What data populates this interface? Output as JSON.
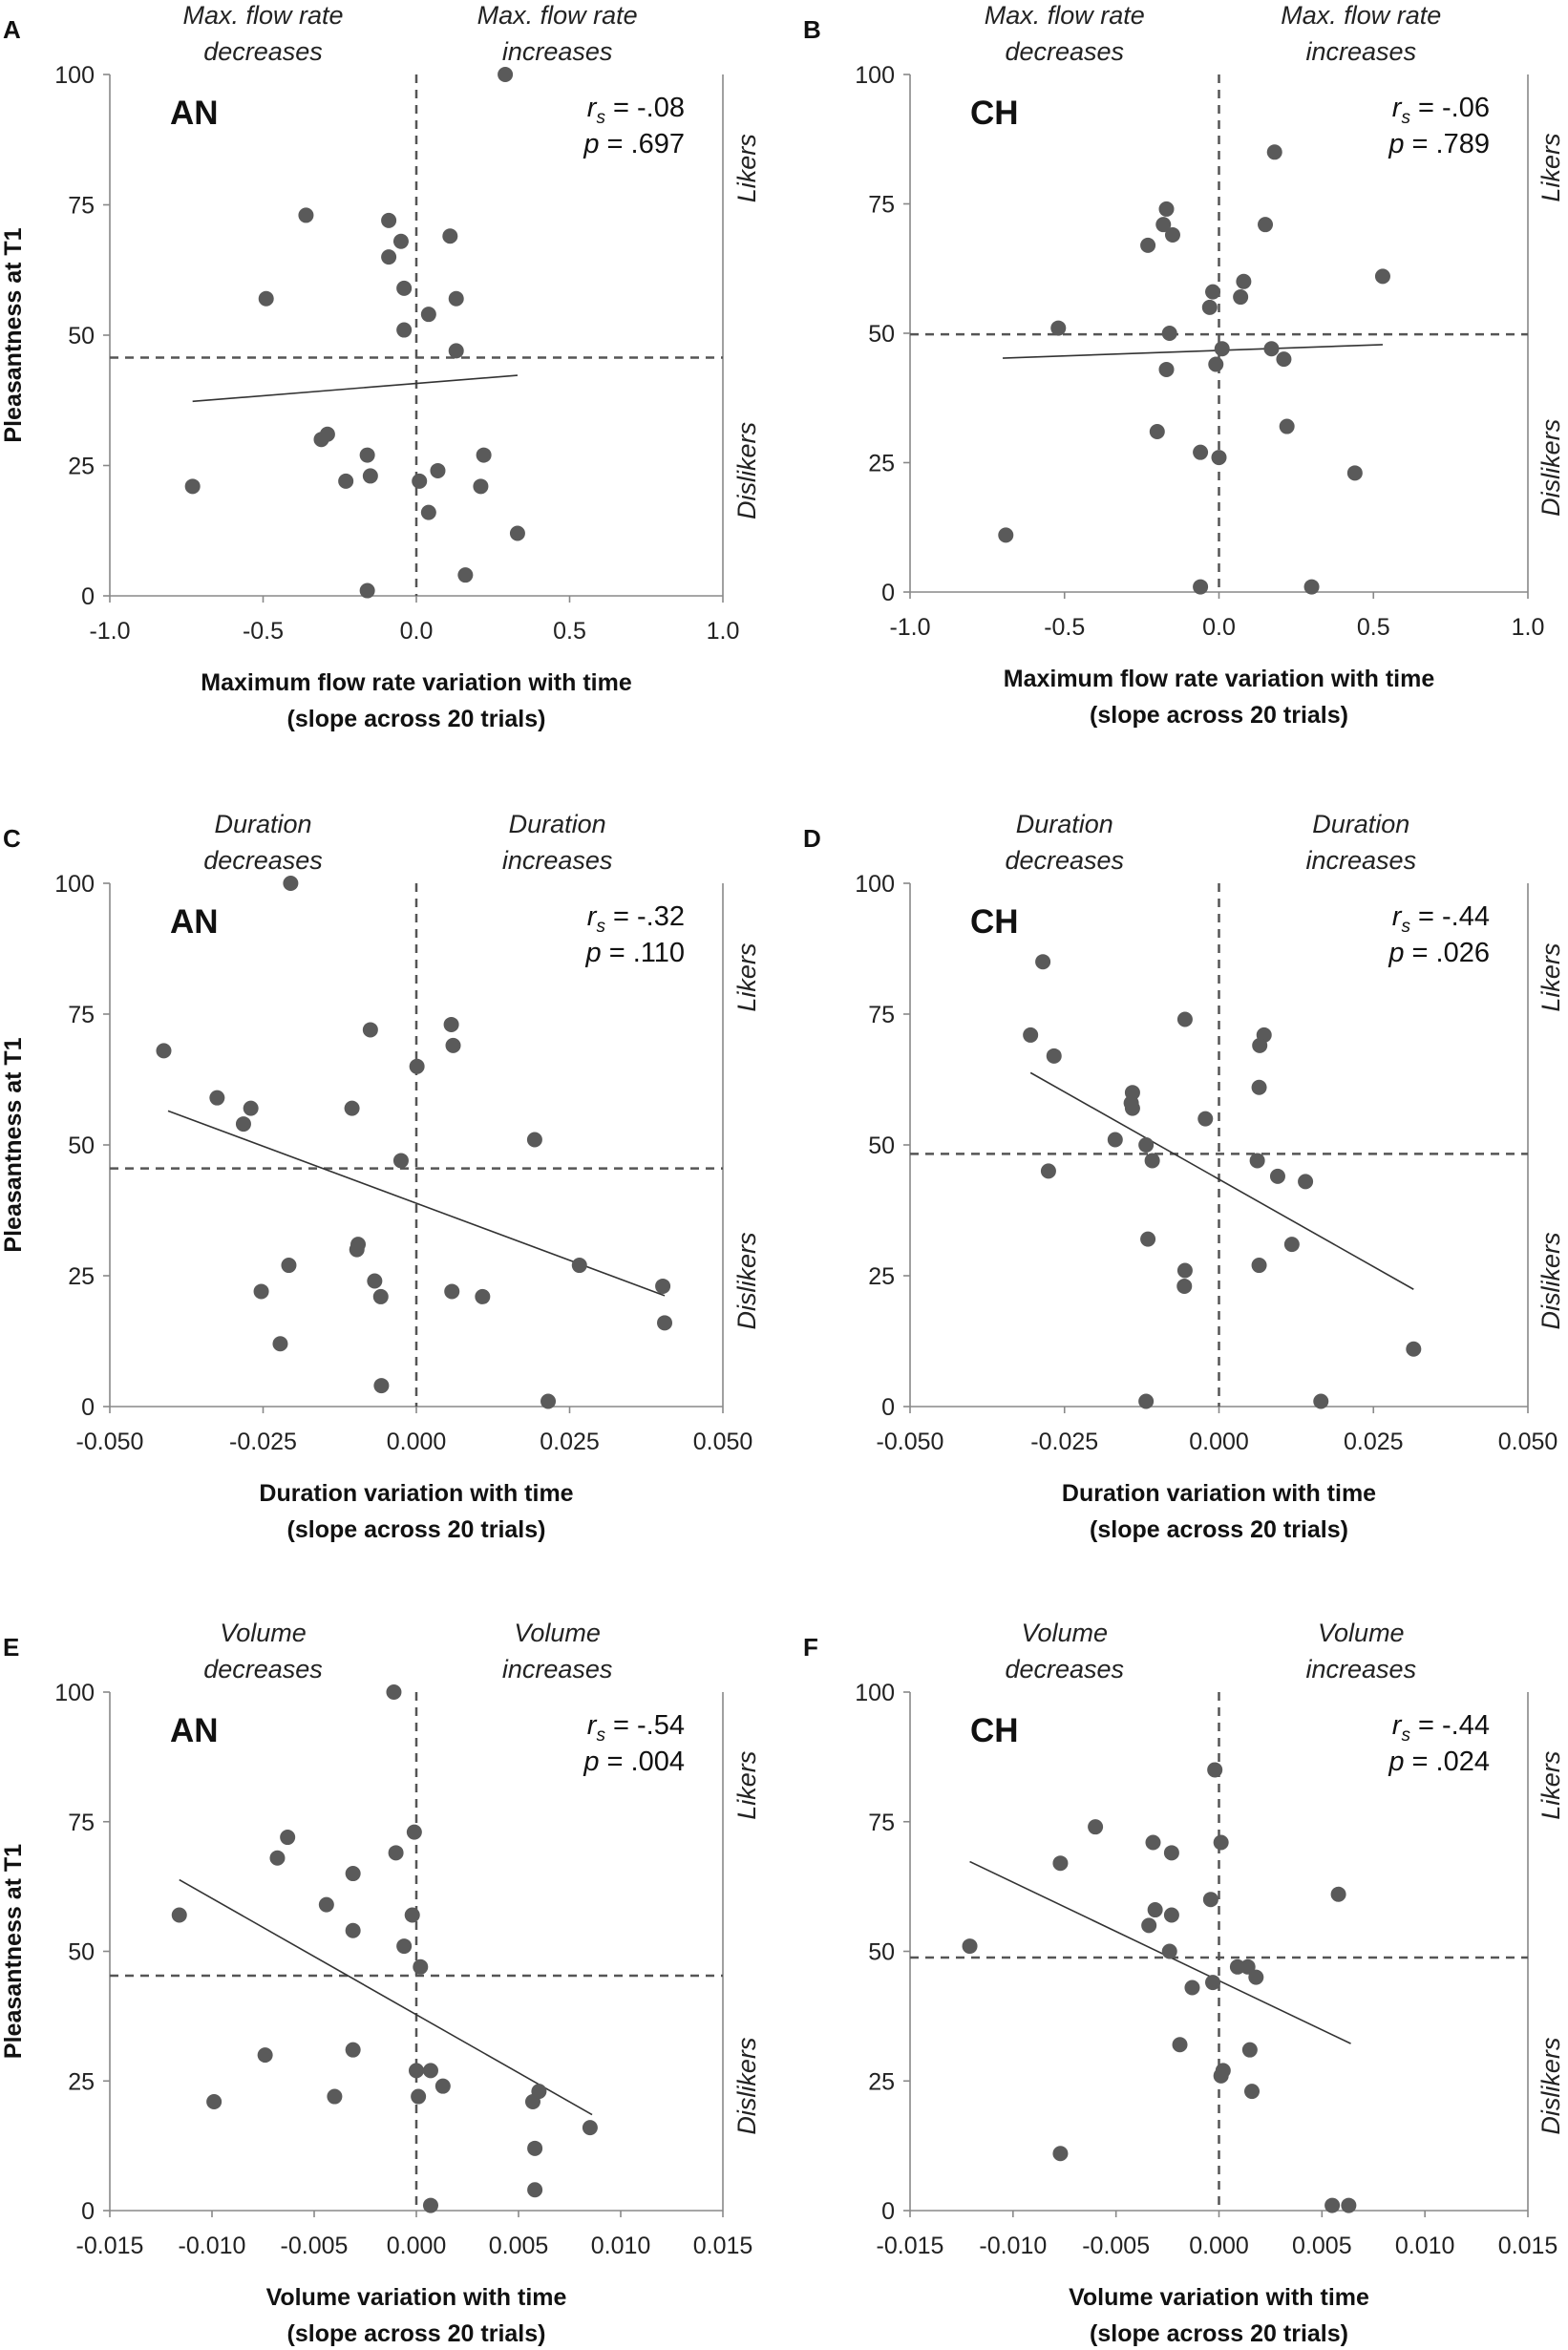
{
  "figure": {
    "shared_y_label": "Pleasantness at T1",
    "side_label_likers": "Likers",
    "side_label_dislikers": "Dislikers"
  },
  "chart_data": [
    {
      "id": "A",
      "panel_letter": "A",
      "group": "AN",
      "type": "scatter",
      "stats": {
        "rs": "-.08",
        "p": ".697"
      },
      "annotation_left": [
        "Max. flow rate",
        "decreases"
      ],
      "annotation_right": [
        "Max. flow rate",
        "increases"
      ],
      "xlabel": [
        "Maximum flow rate variation with time",
        "(slope across 20 trials)"
      ],
      "ylabel": "Pleasantness at T1",
      "xlim": [
        -1.0,
        1.0
      ],
      "ylim": [
        0,
        100
      ],
      "xticks": [
        "-1.0",
        "-0.5",
        "0.0",
        "0.5",
        "1.0"
      ],
      "yticks": [
        "0",
        "25",
        "50",
        "75",
        "100"
      ],
      "hline": 45.7,
      "fit_line": [
        [
          -0.73,
          37.3
        ],
        [
          0.33,
          42.3
        ]
      ],
      "points": [
        [
          0.29,
          100
        ],
        [
          -0.36,
          73
        ],
        [
          -0.09,
          72
        ],
        [
          -0.05,
          68
        ],
        [
          -0.09,
          65
        ],
        [
          0.11,
          69
        ],
        [
          -0.04,
          59
        ],
        [
          -0.49,
          57
        ],
        [
          0.13,
          57
        ],
        [
          0.04,
          54
        ],
        [
          -0.04,
          51
        ],
        [
          0.13,
          47
        ],
        [
          -0.29,
          31
        ],
        [
          -0.31,
          30
        ],
        [
          -0.16,
          27
        ],
        [
          0.22,
          27
        ],
        [
          -0.15,
          23
        ],
        [
          -0.23,
          22
        ],
        [
          0.07,
          24
        ],
        [
          0.01,
          22
        ],
        [
          -0.73,
          21
        ],
        [
          0.21,
          21
        ],
        [
          0.04,
          16
        ],
        [
          0.33,
          12
        ],
        [
          0.16,
          4
        ],
        [
          -0.16,
          1
        ]
      ]
    },
    {
      "id": "B",
      "panel_letter": "B",
      "group": "CH",
      "type": "scatter",
      "stats": {
        "rs": "-.06",
        "p": ".789"
      },
      "annotation_left": [
        "Max. flow rate",
        "decreases"
      ],
      "annotation_right": [
        "Max. flow rate",
        "increases"
      ],
      "xlabel": [
        "Maximum flow rate variation with time",
        "(slope across 20 trials)"
      ],
      "ylabel": "",
      "xlim": [
        -1.0,
        1.0
      ],
      "ylim": [
        0,
        100
      ],
      "xticks": [
        "-1.0",
        "-0.5",
        "0.0",
        "0.5",
        "1.0"
      ],
      "yticks": [
        "0",
        "25",
        "50",
        "75",
        "100"
      ],
      "hline": 49.8,
      "fit_line": [
        [
          -0.7,
          45.2
        ],
        [
          0.53,
          47.8
        ]
      ],
      "points": [
        [
          0.18,
          85
        ],
        [
          -0.17,
          74
        ],
        [
          -0.18,
          71
        ],
        [
          0.15,
          71
        ],
        [
          -0.15,
          69
        ],
        [
          -0.23,
          67
        ],
        [
          0.08,
          60
        ],
        [
          0.53,
          61
        ],
        [
          -0.02,
          58
        ],
        [
          0.07,
          57
        ],
        [
          -0.03,
          55
        ],
        [
          -0.52,
          51
        ],
        [
          -0.16,
          50
        ],
        [
          0.17,
          47
        ],
        [
          0.01,
          47
        ],
        [
          0.21,
          45
        ],
        [
          -0.01,
          44
        ],
        [
          -0.17,
          43
        ],
        [
          0.22,
          32
        ],
        [
          -0.2,
          31
        ],
        [
          -0.06,
          27
        ],
        [
          0.0,
          26
        ],
        [
          0.44,
          23
        ],
        [
          -0.69,
          11
        ],
        [
          -0.06,
          1
        ],
        [
          0.3,
          1
        ]
      ]
    },
    {
      "id": "C",
      "panel_letter": "C",
      "group": "AN",
      "type": "scatter",
      "stats": {
        "rs": "-.32",
        "p": ".110"
      },
      "annotation_left": [
        "Duration",
        "decreases"
      ],
      "annotation_right": [
        "Duration",
        "increases"
      ],
      "xlabel": [
        "Duration variation with time",
        "(slope across 20 trials)"
      ],
      "ylabel": "Pleasantness at T1",
      "xlim": [
        -0.05,
        0.05
      ],
      "ylim": [
        0,
        100
      ],
      "xticks": [
        "-0.050",
        "-0.025",
        "0.000",
        "0.025",
        "0.050"
      ],
      "yticks": [
        "0",
        "25",
        "50",
        "75",
        "100"
      ],
      "hline": 45.5,
      "fit_line": [
        [
          -0.0405,
          56.5
        ],
        [
          0.0405,
          21.2
        ]
      ],
      "points": [
        [
          -0.0205,
          100
        ],
        [
          0.0057,
          73
        ],
        [
          -0.0075,
          72
        ],
        [
          0.006,
          69
        ],
        [
          -0.0412,
          68
        ],
        [
          0.0001,
          65
        ],
        [
          -0.0325,
          59
        ],
        [
          -0.0105,
          57
        ],
        [
          -0.027,
          57
        ],
        [
          -0.0282,
          54
        ],
        [
          0.0193,
          51
        ],
        [
          -0.0025,
          47
        ],
        [
          -0.0095,
          31
        ],
        [
          -0.0097,
          30
        ],
        [
          -0.0208,
          27
        ],
        [
          0.0266,
          27
        ],
        [
          -0.0068,
          24
        ],
        [
          -0.0253,
          22
        ],
        [
          0.0058,
          22
        ],
        [
          -0.0058,
          21
        ],
        [
          0.0108,
          21
        ],
        [
          0.0402,
          23
        ],
        [
          0.0405,
          16
        ],
        [
          -0.0222,
          12
        ],
        [
          -0.0057,
          4
        ],
        [
          0.0215,
          1
        ]
      ]
    },
    {
      "id": "D",
      "panel_letter": "D",
      "group": "CH",
      "type": "scatter",
      "stats": {
        "rs": "-.44",
        "p": ".026"
      },
      "annotation_left": [
        "Duration",
        "decreases"
      ],
      "annotation_right": [
        "Duration",
        "increases"
      ],
      "xlabel": [
        "Duration variation with time",
        "(slope across 20 trials)"
      ],
      "ylabel": "",
      "xlim": [
        -0.05,
        0.05
      ],
      "ylim": [
        0,
        100
      ],
      "xticks": [
        "-0.050",
        "-0.025",
        "0.000",
        "0.025",
        "0.050"
      ],
      "yticks": [
        "0",
        "25",
        "50",
        "75",
        "100"
      ],
      "hline": 48.3,
      "fit_line": [
        [
          -0.0305,
          63.8
        ],
        [
          0.0315,
          22.4
        ]
      ],
      "points": [
        [
          -0.0285,
          85
        ],
        [
          -0.0055,
          74
        ],
        [
          -0.0305,
          71
        ],
        [
          0.0073,
          71
        ],
        [
          0.0066,
          69
        ],
        [
          -0.0267,
          67
        ],
        [
          0.0065,
          61
        ],
        [
          -0.014,
          60
        ],
        [
          -0.014,
          57
        ],
        [
          -0.0142,
          58
        ],
        [
          -0.0022,
          55
        ],
        [
          -0.0168,
          51
        ],
        [
          -0.0118,
          50
        ],
        [
          -0.0108,
          47
        ],
        [
          0.0062,
          47
        ],
        [
          0.0095,
          44
        ],
        [
          0.014,
          43
        ],
        [
          -0.0276,
          45
        ],
        [
          -0.0115,
          32
        ],
        [
          0.0118,
          31
        ],
        [
          -0.0055,
          26
        ],
        [
          0.0065,
          27
        ],
        [
          -0.0056,
          23
        ],
        [
          0.0315,
          11
        ],
        [
          -0.0118,
          1
        ],
        [
          0.0165,
          1
        ]
      ]
    },
    {
      "id": "E",
      "panel_letter": "E",
      "group": "AN",
      "type": "scatter",
      "stats": {
        "rs": "-.54",
        "p": ".004"
      },
      "annotation_left": [
        "Volume",
        "decreases"
      ],
      "annotation_right": [
        "Volume",
        "increases"
      ],
      "xlabel": [
        "Volume variation with time",
        "(slope across 20 trials)"
      ],
      "ylabel": "Pleasantness at T1",
      "xlim": [
        -0.015,
        0.015
      ],
      "ylim": [
        0,
        100
      ],
      "xticks": [
        "-0.015",
        "-0.010",
        "-0.005",
        "0.000",
        "0.005",
        "0.010",
        "0.015"
      ],
      "yticks": [
        "0",
        "25",
        "50",
        "75",
        "100"
      ],
      "hline": 45.3,
      "fit_line": [
        [
          -0.0116,
          63.8
        ],
        [
          0.0086,
          18.5
        ]
      ],
      "points": [
        [
          -0.0011,
          100
        ],
        [
          -0.0063,
          72
        ],
        [
          -0.0068,
          68
        ],
        [
          -0.0031,
          65
        ],
        [
          -0.001,
          69
        ],
        [
          -0.0001,
          73
        ],
        [
          -0.0044,
          59
        ],
        [
          -0.0116,
          57
        ],
        [
          -0.0002,
          57
        ],
        [
          -0.0031,
          54
        ],
        [
          -0.0006,
          51
        ],
        [
          0.0002,
          47
        ],
        [
          -0.0074,
          30
        ],
        [
          -0.0031,
          31
        ],
        [
          0.0,
          27
        ],
        [
          0.0007,
          27
        ],
        [
          0.0013,
          24
        ],
        [
          0.0001,
          22
        ],
        [
          -0.004,
          22
        ],
        [
          0.0057,
          21
        ],
        [
          0.006,
          23
        ],
        [
          -0.0099,
          21
        ],
        [
          0.0085,
          16
        ],
        [
          0.0058,
          12
        ],
        [
          0.0058,
          4
        ],
        [
          0.0007,
          1
        ]
      ]
    },
    {
      "id": "F",
      "panel_letter": "F",
      "group": "CH",
      "type": "scatter",
      "stats": {
        "rs": "-.44",
        "p": ".024"
      },
      "annotation_left": [
        "Volume",
        "decreases"
      ],
      "annotation_right": [
        "Volume",
        "increases"
      ],
      "xlabel": [
        "Volume variation with time",
        "(slope across 20 trials)"
      ],
      "ylabel": "",
      "xlim": [
        -0.015,
        0.015
      ],
      "ylim": [
        0,
        100
      ],
      "xticks": [
        "-0.015",
        "-0.010",
        "-0.005",
        "0.000",
        "0.005",
        "0.010",
        "0.015"
      ],
      "yticks": [
        "0",
        "25",
        "50",
        "75",
        "100"
      ],
      "hline": 48.8,
      "fit_line": [
        [
          -0.0121,
          67.3
        ],
        [
          0.0064,
          32.2
        ]
      ],
      "points": [
        [
          -0.0002,
          85
        ],
        [
          -0.006,
          74
        ],
        [
          -0.0032,
          71
        ],
        [
          0.0001,
          71
        ],
        [
          -0.0023,
          69
        ],
        [
          -0.0077,
          67
        ],
        [
          -0.0004,
          60
        ],
        [
          0.0058,
          61
        ],
        [
          -0.0031,
          58
        ],
        [
          -0.0023,
          57
        ],
        [
          -0.0034,
          55
        ],
        [
          -0.0121,
          51
        ],
        [
          -0.0024,
          50
        ],
        [
          0.0009,
          47
        ],
        [
          0.0014,
          47
        ],
        [
          0.0018,
          45
        ],
        [
          -0.0003,
          44
        ],
        [
          -0.0013,
          43
        ],
        [
          -0.0019,
          32
        ],
        [
          0.0015,
          31
        ],
        [
          0.0002,
          27
        ],
        [
          0.0001,
          26
        ],
        [
          0.0016,
          23
        ],
        [
          -0.0077,
          11
        ],
        [
          0.0055,
          1
        ],
        [
          0.0063,
          1
        ]
      ]
    }
  ]
}
